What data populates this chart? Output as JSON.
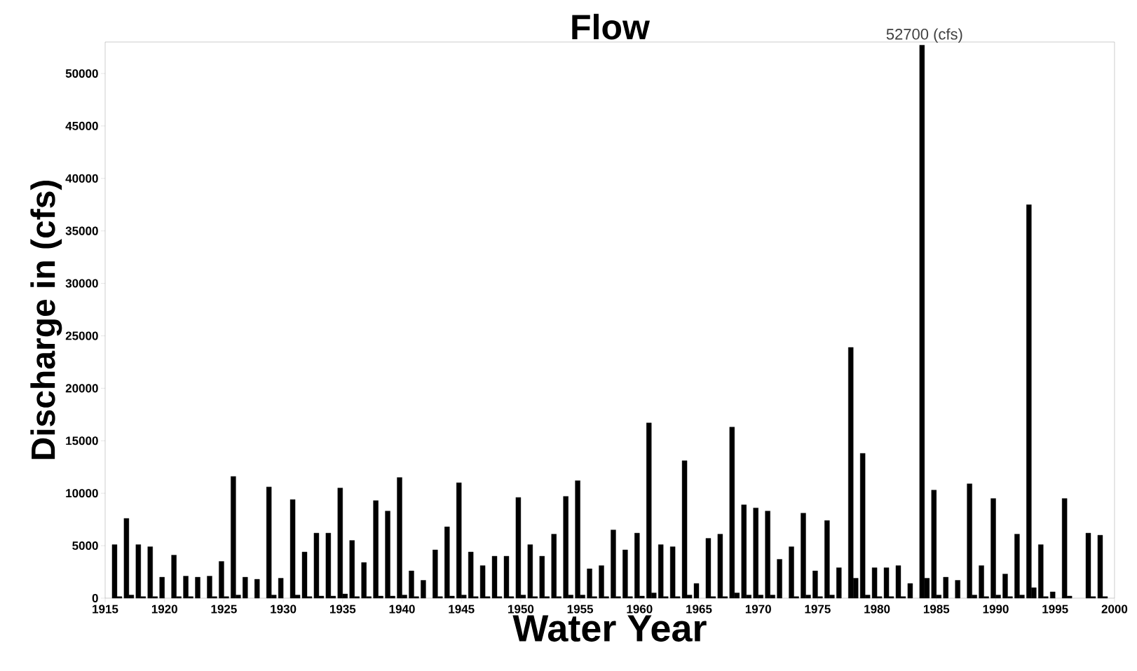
{
  "chart_data": {
    "type": "bar",
    "title": "Flow",
    "xlabel": "Water Year",
    "ylabel": "Discharge in  (cfs)",
    "x": [
      1916,
      1917,
      1918,
      1919,
      1920,
      1921,
      1922,
      1923,
      1924,
      1925,
      1926,
      1927,
      1928,
      1929,
      1930,
      1931,
      1932,
      1933,
      1934,
      1935,
      1936,
      1937,
      1938,
      1939,
      1940,
      1941,
      1942,
      1943,
      1944,
      1945,
      1946,
      1947,
      1948,
      1949,
      1950,
      1951,
      1952,
      1953,
      1954,
      1955,
      1956,
      1957,
      1958,
      1959,
      1960,
      1961,
      1962,
      1963,
      1964,
      1965,
      1966,
      1967,
      1968,
      1969,
      1970,
      1971,
      1972,
      1973,
      1974,
      1975,
      1976,
      1977,
      1978,
      1979,
      1980,
      1981,
      1982,
      1983,
      1984,
      1985,
      1986,
      1987,
      1988,
      1989,
      1990,
      1991,
      1992,
      1993,
      1994,
      1995,
      1996,
      1997,
      1998,
      1999
    ],
    "series": [
      {
        "color": "#000000",
        "values": [
          5100,
          7600,
          5100,
          4900,
          2000,
          4100,
          2100,
          2000,
          2100,
          3500,
          11600,
          2000,
          1800,
          10600,
          1900,
          9400,
          4400,
          6200,
          6200,
          10500,
          5500,
          3400,
          9300,
          8300,
          11500,
          2600,
          1700,
          4600,
          6800,
          11000,
          4400,
          3100,
          4000,
          4000,
          9600,
          5100,
          4000,
          6100,
          9700,
          11200,
          2800,
          3100,
          6500,
          4600,
          6200,
          16700,
          5100,
          4900,
          13100,
          1400,
          5700,
          6100,
          16300,
          8900,
          8600,
          8300,
          3700,
          4900,
          8100,
          2600,
          7400,
          2900,
          23900,
          13800,
          2900,
          2900,
          3100,
          1400,
          52700,
          10300,
          2000,
          1700,
          10900,
          3100,
          9500,
          2300,
          6100,
          37500,
          5100,
          600,
          9500,
          null,
          6200,
          6000
        ]
      },
      {
        "color": "#000000",
        "values": [
          150,
          300,
          150,
          150,
          null,
          150,
          150,
          null,
          150,
          150,
          300,
          null,
          null,
          300,
          null,
          300,
          150,
          200,
          200,
          400,
          150,
          150,
          200,
          200,
          300,
          150,
          null,
          150,
          200,
          300,
          150,
          150,
          150,
          150,
          300,
          150,
          150,
          150,
          300,
          300,
          150,
          150,
          150,
          150,
          200,
          500,
          150,
          150,
          300,
          null,
          150,
          150,
          500,
          300,
          300,
          300,
          null,
          150,
          300,
          150,
          300,
          null,
          1900,
          300,
          150,
          150,
          150,
          null,
          1900,
          300,
          null,
          null,
          300,
          150,
          300,
          150,
          300,
          1000,
          150,
          null,
          200,
          null,
          150,
          150
        ]
      }
    ],
    "xlim": [
      1915,
      2000
    ],
    "xticks": [
      1915,
      1920,
      1925,
      1930,
      1935,
      1940,
      1945,
      1950,
      1955,
      1960,
      1965,
      1970,
      1975,
      1980,
      1985,
      1990,
      1995,
      2000
    ],
    "ylim": [
      0,
      53000
    ],
    "yticks": [
      0,
      5000,
      10000,
      15000,
      20000,
      25000,
      30000,
      35000,
      40000,
      45000,
      50000
    ],
    "grid": false,
    "annotations": [
      {
        "text": "52700 (cfs)",
        "x": 1984,
        "y": 52700
      }
    ]
  }
}
